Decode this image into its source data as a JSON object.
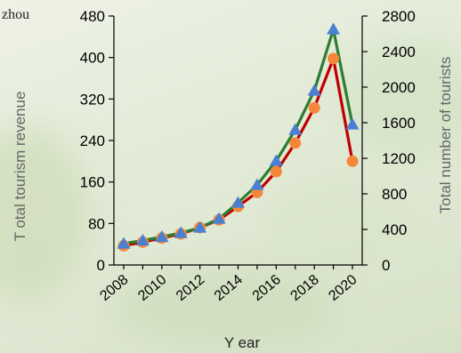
{
  "place_label": "zhou",
  "chart_data": {
    "type": "line",
    "xlabel": "Y ear",
    "ylabel_left": "T otal tourism revenue",
    "ylabel_right": "Total number of tourists",
    "x": [
      2008,
      2009,
      2010,
      2011,
      2012,
      2013,
      2014,
      2015,
      2016,
      2017,
      2018,
      2019,
      2020
    ],
    "x_tick_labels": [
      "2008",
      "2010",
      "2012",
      "2014",
      "2016",
      "2018",
      "2020"
    ],
    "x_tick_values": [
      2008,
      2010,
      2012,
      2014,
      2016,
      2018,
      2020
    ],
    "ylim_left": [
      0,
      480
    ],
    "yticks_left": [
      "0",
      "80",
      "160",
      "240",
      "320",
      "400",
      "480"
    ],
    "ylim_right": [
      0,
      2800
    ],
    "yticks_right": [
      "0",
      "400",
      "800",
      "1200",
      "1600",
      "2000",
      "2400",
      "2800"
    ],
    "series": [
      {
        "axis": "left",
        "color": "#c00000",
        "marker": "circle",
        "marker_color": "#f4873a",
        "values": [
          37,
          44,
          52,
          60,
          72,
          87,
          113,
          140,
          180,
          235,
          303,
          398,
          200
        ]
      },
      {
        "axis": "right",
        "color": "#2e7d32",
        "marker": "triangle",
        "marker_color": "#4a7fd1",
        "values": [
          240,
          275,
          315,
          360,
          420,
          520,
          700,
          900,
          1170,
          1520,
          1960,
          2650,
          1580
        ]
      }
    ]
  }
}
